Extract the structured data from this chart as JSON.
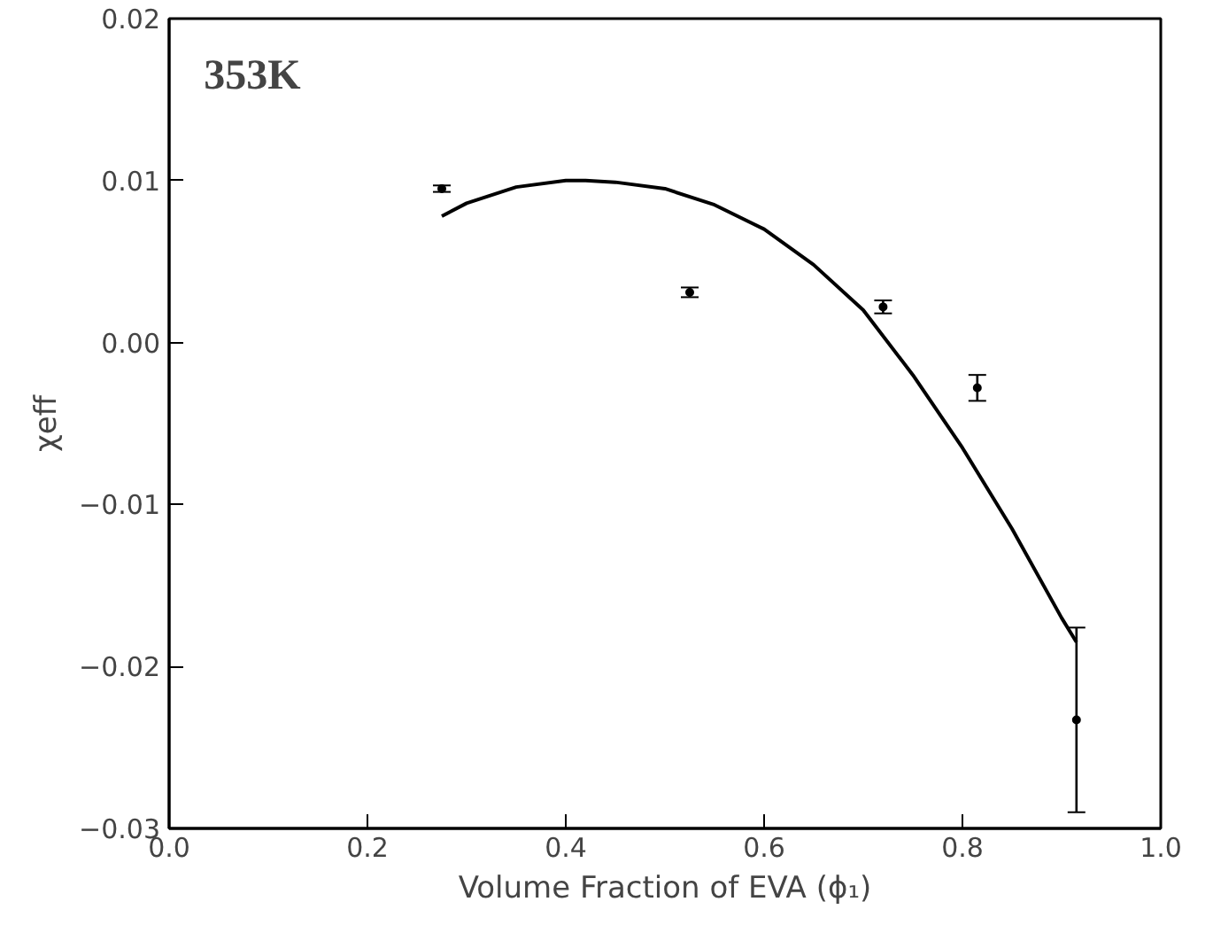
{
  "chart_data": {
    "type": "scatter",
    "xlabel": "Volume Fraction of EVA (ϕ₁)",
    "ylabel": "χeff",
    "annotations": [
      "353K"
    ],
    "xlim": [
      0.0,
      1.0
    ],
    "xticks": [
      {
        "value": 0.0,
        "label": "0.0"
      },
      0.2,
      0.4,
      0.6,
      0.8,
      {
        "value": 1.0,
        "label": "1.0"
      }
    ],
    "ylim": [
      -0.03,
      0.02
    ],
    "yticks": [
      {
        "value": -0.03,
        "label": "−0.03"
      },
      {
        "value": -0.02,
        "label": "−0.02"
      },
      {
        "value": -0.01,
        "label": "−0.01"
      },
      {
        "value": 0.0,
        "label": "0.00"
      },
      0.01,
      0.02
    ],
    "grid": false,
    "series": [
      {
        "color": "#000000",
        "marker": "circle",
        "x": [
          0.275,
          0.525,
          0.72,
          0.815,
          0.915
        ],
        "values": [
          0.0095,
          0.0031,
          0.0022,
          -0.0028,
          -0.0233
        ],
        "errors": [
          0.0002,
          0.0003,
          0.0004,
          0.0008,
          [
            -0.029,
            -0.0176
          ]
        ]
      },
      {
        "type": "line",
        "color": "#000000",
        "marker": "none",
        "x": [
          0.275,
          0.3,
          0.35,
          0.4,
          0.42,
          0.45,
          0.5,
          0.55,
          0.6,
          0.65,
          0.7,
          0.75,
          0.8,
          0.85,
          0.9,
          0.915
        ],
        "values": [
          0.0078,
          0.0086,
          0.0096,
          0.01,
          0.01,
          0.0099,
          0.0095,
          0.0085,
          0.007,
          0.0048,
          0.002,
          -0.002,
          -0.0065,
          -0.0115,
          -0.017,
          -0.0185
        ]
      }
    ]
  }
}
